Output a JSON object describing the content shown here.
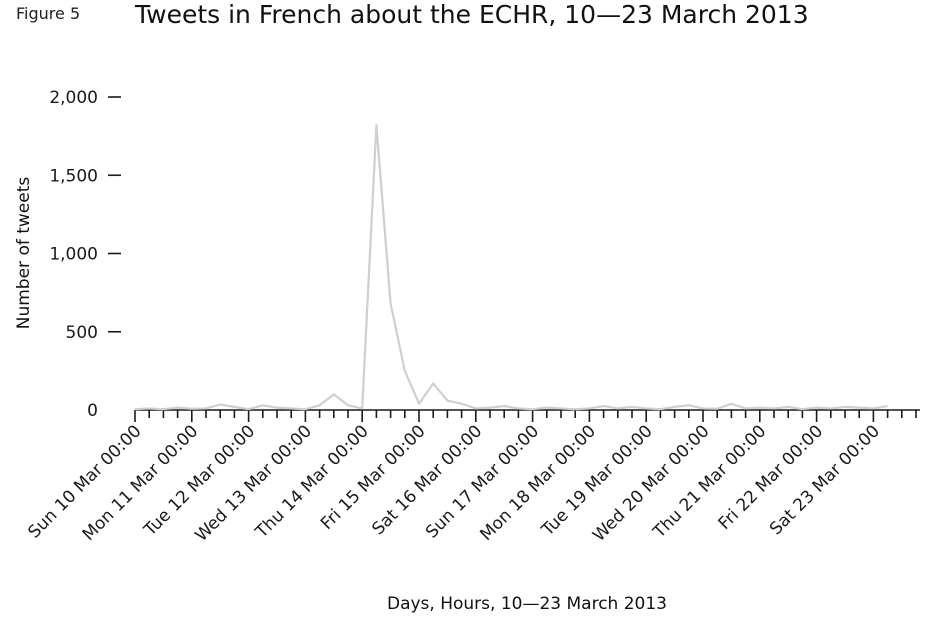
{
  "figure_label": "Figure 5",
  "chart_data": {
    "type": "line",
    "title": "Tweets in French about the ECHR, 10—23 March 2013",
    "xlabel": "Days, Hours, 10—23 March 2013",
    "ylabel": "Number of tweets",
    "ylim": [
      0,
      2000
    ],
    "yticks": [
      0,
      500,
      1000,
      1500,
      2000
    ],
    "ytick_labels": [
      "0",
      "500",
      "1,000",
      "1,500",
      "2,000"
    ],
    "x_tick_labels": [
      "Sun 10 Mar 00:00",
      "Mon 11 Mar 00:00",
      "Tue 12 Mar 00:00",
      "Wed 13 Mar 00:00",
      "Thu 14 Mar 00:00",
      "Fri 15 Mar 00:00",
      "Sat 16 Mar 00:00",
      "Sun 17 Mar 00:00",
      "Mon 18 Mar 00:00",
      "Tue 19 Mar 00:00",
      "Wed 20 Mar 00:00",
      "Thu 21 Mar 00:00",
      "Fri 22 Mar 00:00",
      "Sat 23 Mar 00:00"
    ],
    "x_interval": "12 hours",
    "grid": false,
    "line_color": "#cfcfcf",
    "series": [
      {
        "values": [
          5,
          10,
          5,
          15,
          8,
          10,
          35,
          20,
          5,
          30,
          15,
          10,
          5,
          30,
          100,
          30,
          10,
          1820,
          680,
          250,
          40,
          170,
          60,
          40,
          10,
          15,
          25,
          10,
          5,
          15,
          10,
          5,
          10,
          25,
          10,
          20,
          10,
          5,
          20,
          30,
          10,
          8,
          40,
          10,
          15,
          10,
          20,
          5,
          15,
          10,
          20,
          15,
          10,
          25
        ]
      }
    ]
  }
}
